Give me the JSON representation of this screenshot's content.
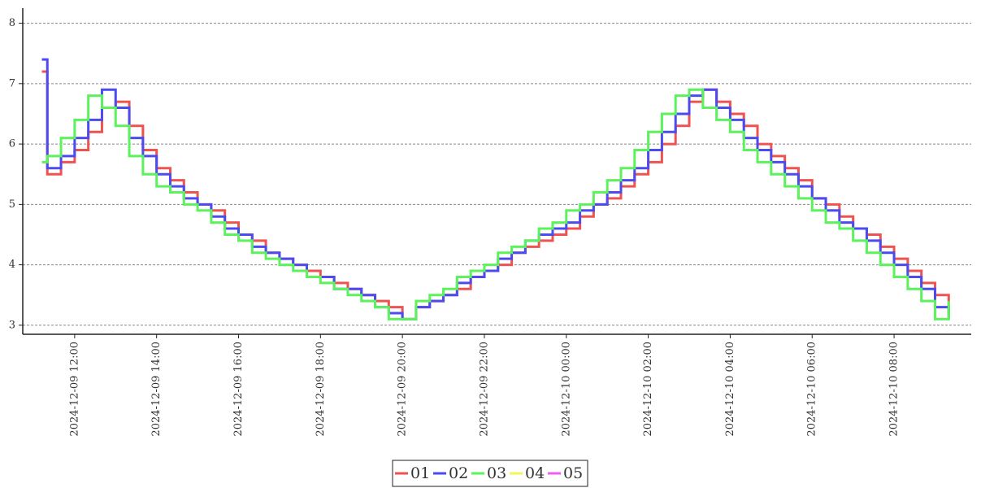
{
  "chart_data": {
    "type": "step",
    "x": [
      "2024-12-09 11:12",
      "2024-12-09 11:20",
      "2024-12-09 11:40",
      "2024-12-09 12:00",
      "2024-12-09 12:20",
      "2024-12-09 12:40",
      "2024-12-09 13:00",
      "2024-12-09 13:20",
      "2024-12-09 13:40",
      "2024-12-09 14:00",
      "2024-12-09 14:20",
      "2024-12-09 14:40",
      "2024-12-09 15:00",
      "2024-12-09 15:20",
      "2024-12-09 15:40",
      "2024-12-09 16:00",
      "2024-12-09 16:20",
      "2024-12-09 16:40",
      "2024-12-09 17:00",
      "2024-12-09 17:20",
      "2024-12-09 17:40",
      "2024-12-09 18:00",
      "2024-12-09 18:20",
      "2024-12-09 18:40",
      "2024-12-09 19:00",
      "2024-12-09 19:20",
      "2024-12-09 19:40",
      "2024-12-09 20:00",
      "2024-12-09 20:20",
      "2024-12-09 20:40",
      "2024-12-09 21:00",
      "2024-12-09 21:20",
      "2024-12-09 21:40",
      "2024-12-09 22:00",
      "2024-12-09 22:20",
      "2024-12-09 22:40",
      "2024-12-09 23:00",
      "2024-12-09 23:20",
      "2024-12-09 23:40",
      "2024-12-10 00:00",
      "2024-12-10 00:20",
      "2024-12-10 00:40",
      "2024-12-10 01:00",
      "2024-12-10 01:20",
      "2024-12-10 01:40",
      "2024-12-10 02:00",
      "2024-12-10 02:20",
      "2024-12-10 02:40",
      "2024-12-10 03:00",
      "2024-12-10 03:20",
      "2024-12-10 03:40",
      "2024-12-10 04:00",
      "2024-12-10 04:20",
      "2024-12-10 04:40",
      "2024-12-10 05:00",
      "2024-12-10 05:20",
      "2024-12-10 05:40",
      "2024-12-10 06:00",
      "2024-12-10 06:20",
      "2024-12-10 06:40",
      "2024-12-10 07:00",
      "2024-12-10 07:20",
      "2024-12-10 07:40",
      "2024-12-10 08:00",
      "2024-12-10 08:20",
      "2024-12-10 08:40",
      "2024-12-10 09:00",
      "2024-12-10 09:20"
    ],
    "series": [
      {
        "name": "01",
        "color": "#ef5350",
        "values": [
          7.2,
          5.5,
          5.7,
          5.9,
          6.2,
          6.6,
          6.7,
          6.3,
          5.9,
          5.6,
          5.4,
          5.2,
          5.0,
          4.9,
          4.7,
          4.5,
          4.4,
          4.2,
          4.1,
          4.0,
          3.9,
          3.8,
          3.7,
          3.6,
          3.5,
          3.4,
          3.3,
          3.1,
          3.3,
          3.4,
          3.5,
          3.6,
          3.8,
          3.9,
          4.0,
          4.2,
          4.3,
          4.4,
          4.5,
          4.6,
          4.8,
          5.0,
          5.1,
          5.3,
          5.5,
          5.7,
          6.0,
          6.3,
          6.7,
          6.9,
          6.7,
          6.5,
          6.3,
          6.0,
          5.8,
          5.6,
          5.4,
          5.1,
          5.0,
          4.8,
          4.6,
          4.5,
          4.3,
          4.1,
          3.9,
          3.7,
          3.5,
          3.2
        ]
      },
      {
        "name": "02",
        "color": "#4b4bef",
        "values": [
          7.4,
          5.6,
          5.8,
          6.1,
          6.4,
          6.9,
          6.6,
          6.1,
          5.8,
          5.5,
          5.3,
          5.1,
          5.0,
          4.8,
          4.6,
          4.5,
          4.3,
          4.2,
          4.1,
          4.0,
          3.8,
          3.8,
          3.6,
          3.6,
          3.5,
          3.3,
          3.2,
          3.1,
          3.3,
          3.4,
          3.5,
          3.7,
          3.8,
          3.9,
          4.1,
          4.2,
          4.4,
          4.5,
          4.6,
          4.7,
          4.9,
          5.0,
          5.2,
          5.4,
          5.6,
          5.9,
          6.2,
          6.5,
          6.8,
          6.9,
          6.6,
          6.4,
          6.1,
          5.9,
          5.7,
          5.5,
          5.3,
          5.1,
          4.9,
          4.7,
          4.6,
          4.4,
          4.2,
          4.0,
          3.8,
          3.6,
          3.3,
          3.1
        ]
      },
      {
        "name": "03",
        "color": "#5cf25c",
        "values": [
          5.7,
          5.8,
          6.1,
          6.4,
          6.8,
          6.6,
          6.3,
          5.8,
          5.5,
          5.3,
          5.2,
          5.0,
          4.9,
          4.7,
          4.5,
          4.4,
          4.2,
          4.1,
          4.0,
          3.9,
          3.8,
          3.7,
          3.6,
          3.5,
          3.4,
          3.3,
          3.1,
          3.1,
          3.4,
          3.5,
          3.6,
          3.8,
          3.9,
          4.0,
          4.2,
          4.3,
          4.4,
          4.6,
          4.7,
          4.9,
          5.0,
          5.2,
          5.4,
          5.6,
          5.9,
          6.2,
          6.5,
          6.8,
          6.9,
          6.6,
          6.4,
          6.2,
          5.9,
          5.7,
          5.5,
          5.3,
          5.1,
          4.9,
          4.7,
          4.6,
          4.4,
          4.2,
          4.0,
          3.8,
          3.6,
          3.4,
          3.1,
          3.4
        ]
      },
      {
        "name": "04",
        "color": "#f5f55a"
      },
      {
        "name": "05",
        "color": "#f25cf2"
      }
    ],
    "xlim": [
      "2024-12-09 10:44",
      "2024-12-10 09:53"
    ],
    "xticks": [
      "2024-12-09 12:00",
      "2024-12-09 14:00",
      "2024-12-09 16:00",
      "2024-12-09 18:00",
      "2024-12-09 20:00",
      "2024-12-09 22:00",
      "2024-12-10 00:00",
      "2024-12-10 02:00",
      "2024-12-10 04:00",
      "2024-12-10 06:00",
      "2024-12-10 08:00"
    ],
    "ylim": [
      2.85,
      8.25
    ],
    "yticks": [
      3,
      4,
      5,
      6,
      7,
      8
    ],
    "grid": true
  }
}
